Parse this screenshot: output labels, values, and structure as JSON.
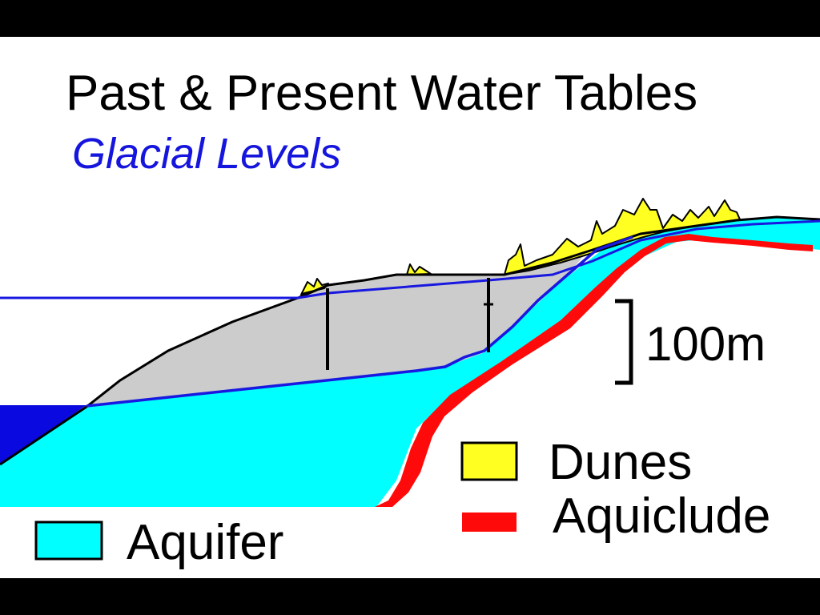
{
  "title": "Past & Present Water Tables",
  "subtitle": "Glacial Levels",
  "scale_bar": {
    "label": "100m"
  },
  "legend": {
    "dunes": "Dunes",
    "aquiclude": "Aquiclude",
    "aquifer": "Aquifer"
  },
  "colors": {
    "background": "#000000",
    "panel": "#ffffff",
    "aquifer": "#00ffff",
    "dunes": "#ffff22",
    "aquiclude": "#ff0a0a",
    "sea": "#0a0ae0",
    "water_table": "#1818e0",
    "sediment": "#cccccc",
    "subtitle": "#1515dd"
  }
}
